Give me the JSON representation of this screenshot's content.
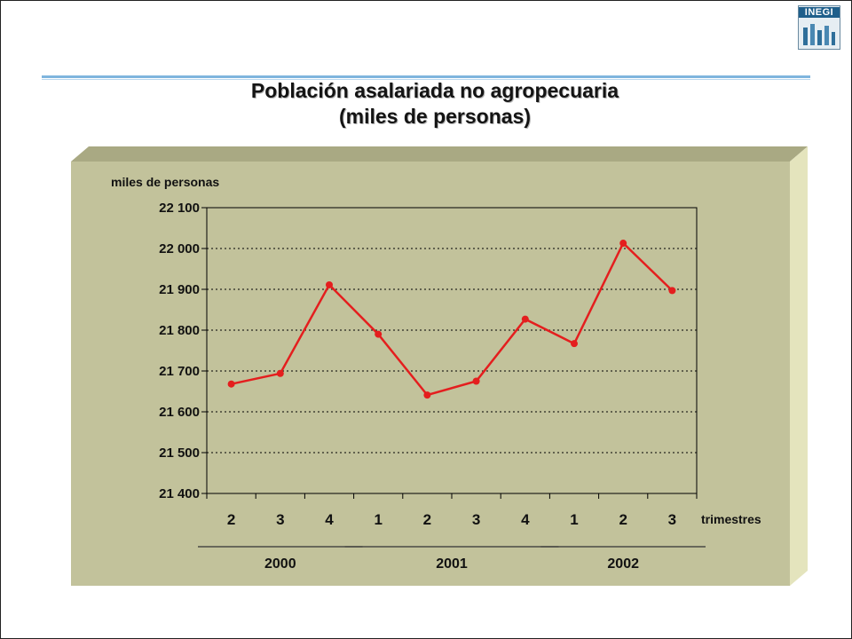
{
  "header": {
    "logo_text": "INEGI",
    "title_line1": "Población asalariada no agropecuaria",
    "title_line2": "(miles de personas)"
  },
  "colors": {
    "panel_face": "#c2c29b",
    "panel_top": "#a9a983",
    "panel_side": "#e4e4bd",
    "line": "#e41e1e",
    "grid": "#000000"
  },
  "chart_data": {
    "type": "line",
    "title": "Población asalariada no agropecuaria (miles de personas)",
    "ylabel": "miles de personas",
    "xlabel": "trimestres",
    "ylim": [
      21400,
      22100
    ],
    "y_ticks": [
      21400,
      21500,
      21600,
      21700,
      21800,
      21900,
      22000,
      22100
    ],
    "y_tick_labels": [
      "21 400",
      "21 500",
      "21 600",
      "21 700",
      "21 800",
      "21 900",
      "22 000",
      "22 100"
    ],
    "categories": [
      "2",
      "3",
      "4",
      "1",
      "2",
      "3",
      "4",
      "1",
      "2",
      "3"
    ],
    "years": [
      {
        "label": "2000",
        "quarters": 3
      },
      {
        "label": "2001",
        "quarters": 4
      },
      {
        "label": "2002",
        "quarters": 3
      }
    ],
    "series": [
      {
        "values": [
          21668,
          21694,
          21911,
          21790,
          21641,
          21675,
          21827,
          21767,
          22013,
          21897
        ]
      }
    ],
    "grid": "horizontal dotted",
    "legend": "none"
  }
}
